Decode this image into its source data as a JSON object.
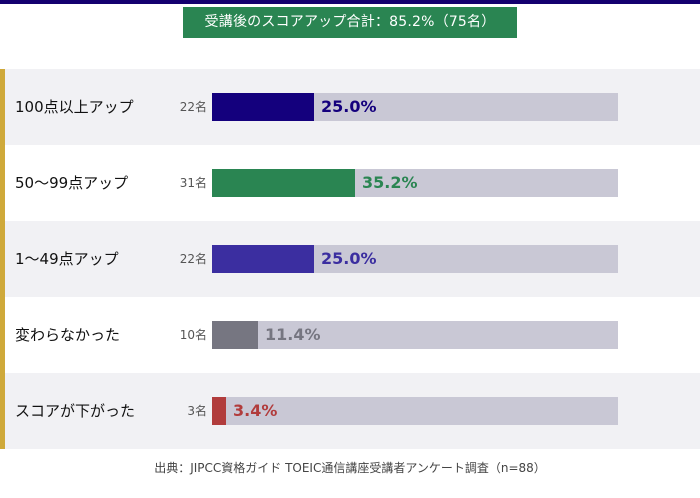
{
  "header": {
    "summary": "受講後のスコアアップ合計：85.2%（75名）"
  },
  "colors": {
    "accent": "#cfa93a",
    "track": "#c9c8d5",
    "top_line": "#14006f",
    "badge": "#2a8552"
  },
  "chart_data": {
    "type": "bar",
    "orientation": "horizontal",
    "title": "受講後のスコアアップ合計：85.2%（75名）",
    "xlim": [
      0,
      100
    ],
    "categories": [
      "100点以上アップ",
      "50〜99点アップ",
      "1〜49点アップ",
      "変わらなかった",
      "スコアが下がった"
    ],
    "rows": [
      {
        "label": "100点以上アップ",
        "count": "22名",
        "value": 25.0,
        "value_label": "25.0%",
        "color": "#14007d"
      },
      {
        "label": "50〜99点アップ",
        "count": "31名",
        "value": 35.2,
        "value_label": "35.2%",
        "color": "#2a8552"
      },
      {
        "label": "1〜49点アップ",
        "count": "22名",
        "value": 25.0,
        "value_label": "25.0%",
        "color": "#3b2ea0"
      },
      {
        "label": "変わらなかった",
        "count": "10名",
        "value": 11.4,
        "value_label": "11.4%",
        "color": "#767681"
      },
      {
        "label": "スコアが下がった",
        "count": "3名",
        "value": 3.4,
        "value_label": "3.4%",
        "color": "#b13c3c"
      }
    ]
  },
  "footer": {
    "source": "出典：JIPCC資格ガイド TOEIC通信講座受講者アンケート調査（n=88）"
  }
}
